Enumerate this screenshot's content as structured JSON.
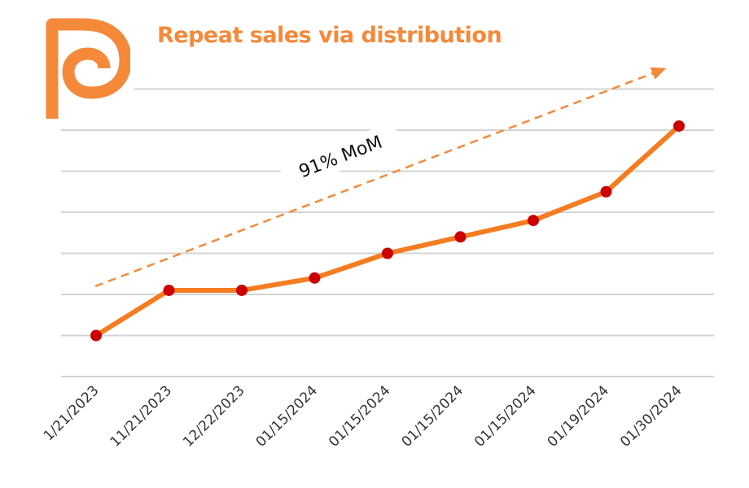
{
  "logo": {
    "icon": "p-logo-icon",
    "color": "#f5893a"
  },
  "chart_data": {
    "type": "line",
    "title": "Repeat sales via distribution",
    "xlabel": "",
    "ylabel": "",
    "categories": [
      "1/21/2023",
      "11/21/2023",
      "12/22/2023",
      "01/15/2024",
      "01/15/2024",
      "01/15/2024",
      "01/15/2024",
      "01/19/2024",
      "01/30/2024"
    ],
    "series": [
      {
        "values": [
          1.0,
          2.1,
          2.1,
          2.4,
          3.0,
          3.4,
          3.8,
          4.5,
          6.1
        ],
        "color": "#f57c20",
        "marker_color": "#cc0000"
      }
    ],
    "ylim": [
      0,
      7
    ],
    "grid": true,
    "annotation": {
      "text": "91% MoM",
      "style": "dashed-arrow",
      "color": "#f5893a"
    },
    "y_tick_labels": "none"
  }
}
